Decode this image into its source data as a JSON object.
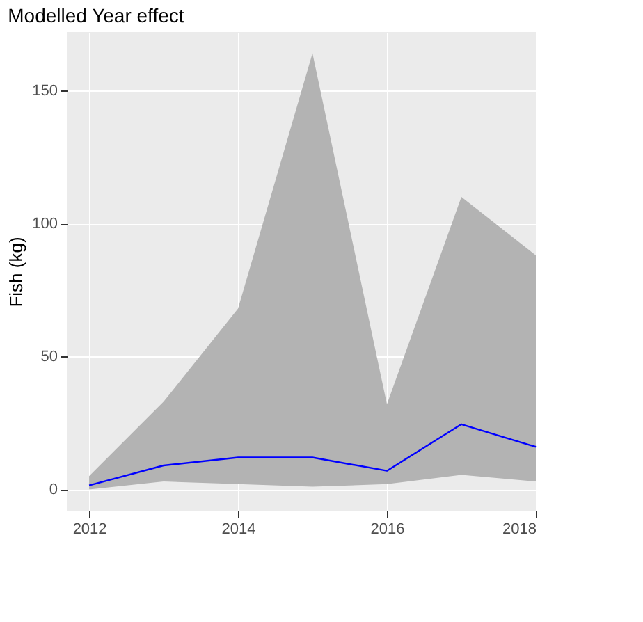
{
  "chart_data": {
    "type": "line",
    "title": "Modelled Year effect",
    "ylabel": "Fish (kg)",
    "x": [
      2012,
      2013,
      2014,
      2015,
      2016,
      2017,
      2018
    ],
    "series": [
      {
        "color": "#0000ff",
        "values": [
          1.5,
          9,
          12,
          12,
          7,
          24.5,
          16
        ],
        "lower": [
          0,
          3,
          2,
          1,
          2,
          5.5,
          3
        ],
        "upper": [
          5,
          33,
          68,
          164,
          32,
          110,
          88
        ]
      }
    ],
    "xlim": [
      2011.7,
      2018.0
    ],
    "xticks": [
      2012,
      2014,
      2016,
      2018
    ],
    "ylim": [
      -8,
      172
    ],
    "yticks": [
      0,
      50,
      100,
      150
    ],
    "grid": true
  }
}
